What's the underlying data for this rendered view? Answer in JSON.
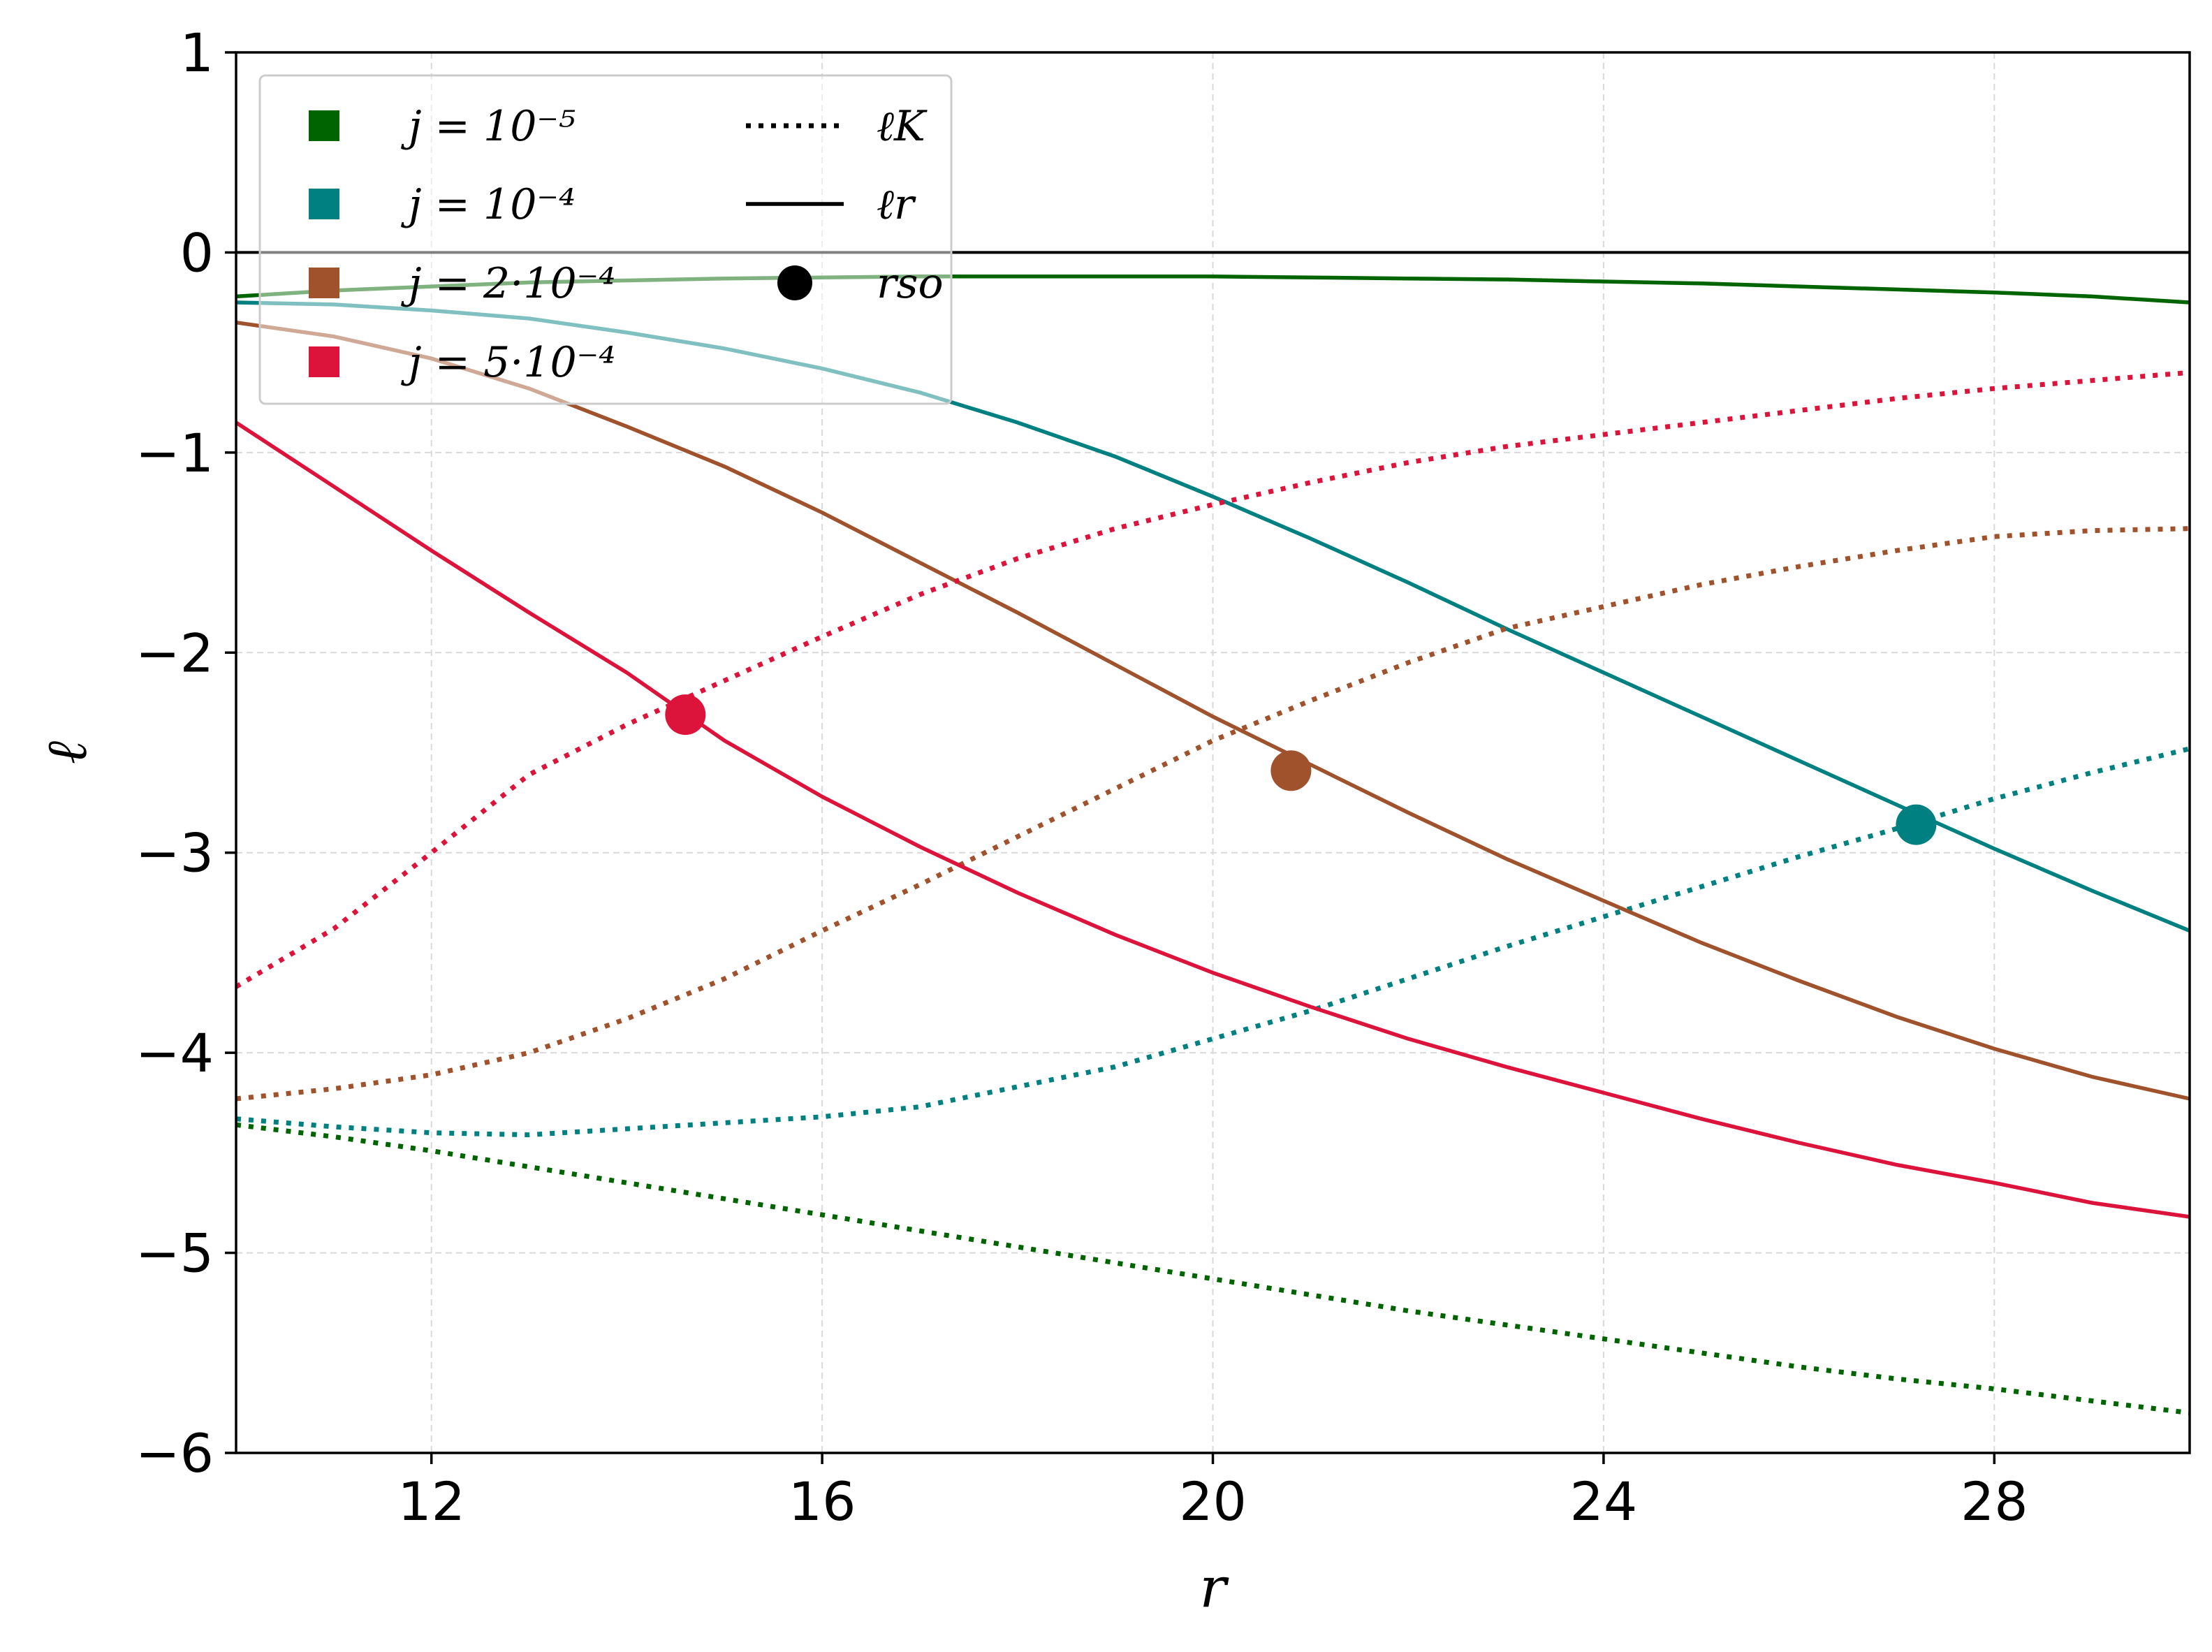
{
  "chart_data": {
    "type": "line",
    "xlabel": "r",
    "ylabel": "ℓ",
    "xlim": [
      10,
      30
    ],
    "ylim": [
      -6,
      1
    ],
    "xticks": [
      12,
      16,
      20,
      24,
      28
    ],
    "yticks": [
      1,
      0,
      -1,
      -2,
      -3,
      -4,
      -5,
      -6
    ],
    "xtick_labels": [
      "12",
      "16",
      "20",
      "24",
      "28"
    ],
    "ytick_labels": [
      "1",
      "0",
      "−1",
      "−2",
      "−3",
      "−4",
      "−5",
      "−6"
    ],
    "grid": true,
    "reference_line_y": 0,
    "legend_position": "top-left",
    "legend": {
      "series_labels": [
        "j = 10⁻⁵",
        "j = 10⁻⁴",
        "j = 2·10⁻⁴",
        "j = 5·10⁻⁴"
      ],
      "style_labels": [
        "ℓK",
        "ℓr",
        "rso"
      ],
      "style_keys": [
        "dotted",
        "solid",
        "marker"
      ]
    },
    "series": [
      {
        "name": "j = 10⁻⁵",
        "color": "#006400",
        "ell_r": {
          "x": [
            10,
            11,
            12,
            13,
            14,
            15,
            16,
            17,
            18,
            19,
            20,
            21,
            22,
            23,
            24,
            25,
            26,
            27,
            28,
            29,
            30
          ],
          "y": [
            -0.22,
            -0.19,
            -0.17,
            -0.15,
            -0.14,
            -0.13,
            -0.125,
            -0.12,
            -0.12,
            -0.12,
            -0.12,
            -0.125,
            -0.13,
            -0.135,
            -0.145,
            -0.155,
            -0.17,
            -0.185,
            -0.2,
            -0.22,
            -0.25
          ]
        },
        "ell_K": {
          "x": [
            10,
            11,
            12,
            13,
            14,
            15,
            16,
            17,
            18,
            19,
            20,
            21,
            22,
            23,
            24,
            25,
            26,
            27,
            28,
            29,
            30
          ],
          "y": [
            -4.36,
            -4.42,
            -4.49,
            -4.57,
            -4.65,
            -4.73,
            -4.81,
            -4.89,
            -4.97,
            -5.05,
            -5.13,
            -5.21,
            -5.29,
            -5.36,
            -5.43,
            -5.5,
            -5.57,
            -5.63,
            -5.68,
            -5.74,
            -5.8
          ]
        },
        "rso": null
      },
      {
        "name": "j = 10⁻⁴",
        "color": "#008080",
        "ell_r": {
          "x": [
            10,
            11,
            12,
            13,
            14,
            15,
            16,
            17,
            18,
            19,
            20,
            21,
            22,
            23,
            24,
            25,
            26,
            27,
            28,
            29,
            30
          ],
          "y": [
            -0.25,
            -0.26,
            -0.29,
            -0.33,
            -0.4,
            -0.48,
            -0.58,
            -0.7,
            -0.85,
            -1.02,
            -1.22,
            -1.43,
            -1.65,
            -1.88,
            -2.1,
            -2.32,
            -2.54,
            -2.76,
            -2.98,
            -3.19,
            -3.39
          ]
        },
        "ell_K": {
          "x": [
            10,
            11,
            12,
            13,
            14,
            15,
            16,
            17,
            18,
            19,
            20,
            21,
            22,
            23,
            24,
            25,
            26,
            27,
            28,
            29,
            30
          ],
          "y": [
            -4.33,
            -4.37,
            -4.4,
            -4.41,
            -4.38,
            -4.35,
            -4.32,
            -4.27,
            -4.17,
            -4.07,
            -3.93,
            -3.79,
            -3.63,
            -3.47,
            -3.32,
            -3.17,
            -3.02,
            -2.88,
            -2.73,
            -2.6,
            -2.48
          ]
        },
        "rso": {
          "r": 27.2,
          "ell": -2.86
        }
      },
      {
        "name": "j = 2·10⁻⁴",
        "color": "#A0522D",
        "ell_r": {
          "x": [
            10,
            11,
            12,
            13,
            14,
            15,
            16,
            17,
            18,
            19,
            20,
            21,
            22,
            23,
            24,
            25,
            26,
            27,
            28,
            29,
            30
          ],
          "y": [
            -0.35,
            -0.42,
            -0.53,
            -0.68,
            -0.87,
            -1.07,
            -1.3,
            -1.55,
            -1.8,
            -2.06,
            -2.32,
            -2.56,
            -2.8,
            -3.03,
            -3.24,
            -3.45,
            -3.64,
            -3.82,
            -3.98,
            -4.12,
            -4.23
          ]
        },
        "ell_K": {
          "x": [
            10,
            11,
            12,
            13,
            14,
            15,
            16,
            17,
            18,
            19,
            20,
            21,
            22,
            23,
            24,
            25,
            26,
            27,
            28,
            29,
            30
          ],
          "y": [
            -4.23,
            -4.18,
            -4.11,
            -4.0,
            -3.83,
            -3.63,
            -3.39,
            -3.16,
            -2.92,
            -2.68,
            -2.44,
            -2.24,
            -2.05,
            -1.88,
            -1.77,
            -1.66,
            -1.57,
            -1.49,
            -1.42,
            -1.39,
            -1.38
          ]
        },
        "rso": {
          "r": 20.8,
          "ell": -2.59
        }
      },
      {
        "name": "j = 5·10⁻⁴",
        "color": "#DC143C",
        "ell_r": {
          "x": [
            10,
            11,
            12,
            13,
            14,
            15,
            16,
            17,
            18,
            19,
            20,
            21,
            22,
            23,
            24,
            25,
            26,
            27,
            28,
            29,
            30
          ],
          "y": [
            -0.85,
            -1.17,
            -1.49,
            -1.8,
            -2.1,
            -2.44,
            -2.72,
            -2.97,
            -3.2,
            -3.41,
            -3.6,
            -3.77,
            -3.93,
            -4.07,
            -4.2,
            -4.33,
            -4.45,
            -4.56,
            -4.65,
            -4.75,
            -4.82
          ]
        },
        "ell_K": {
          "x": [
            10,
            11,
            12,
            13,
            14,
            15,
            16,
            17,
            18,
            19,
            20,
            21,
            22,
            23,
            24,
            25,
            26,
            27,
            28,
            29,
            30
          ],
          "y": [
            -3.67,
            -3.38,
            -3.0,
            -2.61,
            -2.36,
            -2.14,
            -1.92,
            -1.71,
            -1.53,
            -1.38,
            -1.26,
            -1.15,
            -1.05,
            -0.97,
            -0.91,
            -0.85,
            -0.79,
            -0.73,
            -0.68,
            -0.64,
            -0.6
          ]
        },
        "rso": {
          "r": 14.6,
          "ell": -2.31
        }
      }
    ]
  }
}
